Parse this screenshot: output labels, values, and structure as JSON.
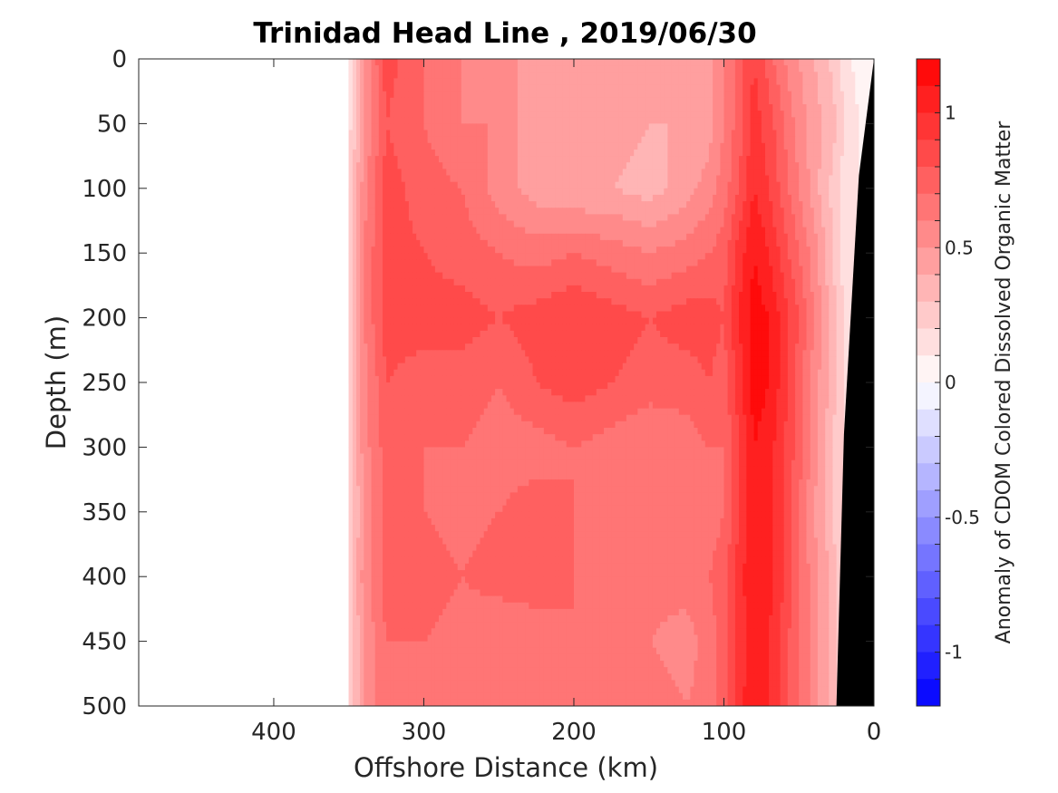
{
  "chart_data": {
    "type": "heatmap",
    "title": "Trinidad Head Line , 2019/06/30",
    "xlabel": "Offshore Distance (km)",
    "ylabel": "Depth (m)",
    "colorbar_label": "Anomaly of CDOM Colored Dissolved Organic Matter",
    "x_axis": {
      "lim": [
        490,
        0
      ],
      "reversed": true,
      "ticks": [
        400,
        300,
        200,
        100,
        0
      ],
      "tick_labels": [
        "400",
        "300",
        "200",
        "100",
        "0"
      ]
    },
    "y_axis": {
      "lim": [
        0,
        500
      ],
      "reversed": true,
      "ticks": [
        0,
        50,
        100,
        150,
        200,
        250,
        300,
        350,
        400,
        450,
        500
      ],
      "tick_labels": [
        "0",
        "50",
        "100",
        "150",
        "200",
        "250",
        "300",
        "350",
        "400",
        "450",
        "500"
      ]
    },
    "colorbar": {
      "lim": [
        -1.2,
        1.2
      ],
      "levels": 24,
      "ticks": [
        1,
        0.5,
        0,
        -0.5,
        -1
      ],
      "tick_labels": [
        "1",
        "0.5",
        "0",
        "-0.5",
        "-1"
      ],
      "colors": {
        "negative": "#0000ff",
        "zero": "#ffffff",
        "positive": "#ff0000"
      }
    },
    "data_extent": {
      "x_min": 0,
      "x_max": 350
    },
    "x": [
      350,
      340,
      325,
      300,
      275,
      250,
      225,
      200,
      175,
      150,
      125,
      110,
      100,
      90,
      80,
      70,
      60,
      50,
      40,
      30,
      25,
      20,
      10,
      5,
      0
    ],
    "y": [
      0,
      50,
      100,
      150,
      200,
      250,
      300,
      350,
      400,
      450,
      500
    ],
    "z": [
      [
        0.15,
        0.5,
        0.85,
        0.7,
        0.6,
        0.55,
        0.45,
        0.45,
        0.5,
        0.4,
        0.4,
        0.45,
        0.6,
        0.75,
        0.9,
        0.75,
        0.6,
        0.5,
        0.4,
        0.3,
        0.25,
        0.15,
        0.05,
        0.05,
        0
      ],
      [
        0.15,
        0.5,
        0.8,
        0.7,
        0.6,
        0.6,
        0.4,
        0.4,
        0.45,
        0.4,
        0.4,
        0.45,
        0.6,
        0.75,
        0.95,
        0.85,
        0.7,
        0.55,
        0.45,
        0.35,
        0.3,
        0.2,
        0.1,
        0.05,
        0
      ],
      [
        0.2,
        0.55,
        0.85,
        0.75,
        0.7,
        0.55,
        0.45,
        0.4,
        0.4,
        0.35,
        0.45,
        0.55,
        0.65,
        0.8,
        1.0,
        0.9,
        0.75,
        0.6,
        0.45,
        0.3,
        0.25,
        0.15,
        0.1,
        0.05,
        0
      ],
      [
        0.25,
        0.6,
        0.85,
        0.8,
        0.75,
        0.7,
        0.65,
        0.7,
        0.65,
        0.6,
        0.65,
        0.7,
        0.75,
        0.95,
        1.1,
        1.0,
        0.85,
        0.7,
        0.55,
        0.35,
        0.25,
        0.15,
        0.1,
        0.05,
        0
      ],
      [
        0.25,
        0.6,
        0.85,
        0.85,
        0.85,
        0.8,
        0.85,
        0.9,
        0.85,
        0.8,
        0.85,
        0.85,
        0.8,
        1.0,
        1.15,
        1.1,
        0.95,
        0.8,
        0.6,
        0.4,
        0.3,
        0.2,
        0.1,
        0.05,
        0
      ],
      [
        0.2,
        0.55,
        0.8,
        0.75,
        0.75,
        0.7,
        0.8,
        0.85,
        0.8,
        0.75,
        0.75,
        0.8,
        0.75,
        0.95,
        1.15,
        1.1,
        0.95,
        0.75,
        0.55,
        0.4,
        0.3,
        0.2,
        0.1,
        0.05,
        0
      ],
      [
        0.2,
        0.55,
        0.75,
        0.7,
        0.7,
        0.65,
        0.65,
        0.7,
        0.65,
        0.6,
        0.65,
        0.7,
        0.7,
        0.9,
        1.1,
        1.05,
        0.9,
        0.75,
        0.55,
        0.35,
        0.25,
        0.2,
        0.1,
        0.05,
        0
      ],
      [
        0.2,
        0.5,
        0.75,
        0.7,
        0.65,
        0.7,
        0.75,
        0.7,
        0.65,
        0.6,
        0.6,
        0.65,
        0.7,
        0.9,
        1.1,
        1.05,
        0.9,
        0.7,
        0.5,
        0.35,
        0.25,
        0.2,
        0.1,
        0.05,
        0
      ],
      [
        0.2,
        0.55,
        0.75,
        0.75,
        0.7,
        0.75,
        0.75,
        0.7,
        0.7,
        0.65,
        0.65,
        0.7,
        0.75,
        0.95,
        1.1,
        1.05,
        0.9,
        0.7,
        0.55,
        0.4,
        0.3,
        0.2,
        0.1,
        0.05,
        0
      ],
      [
        0.2,
        0.5,
        0.7,
        0.7,
        0.65,
        0.6,
        0.65,
        0.7,
        0.65,
        0.6,
        0.55,
        0.65,
        0.75,
        0.95,
        1.05,
        1.0,
        0.85,
        0.7,
        0.55,
        0.4,
        0.3,
        0.2,
        0.1,
        0.05,
        0
      ],
      [
        0.2,
        0.5,
        0.7,
        0.65,
        0.6,
        0.6,
        0.6,
        0.65,
        0.7,
        0.65,
        0.6,
        0.65,
        0.75,
        0.95,
        1.1,
        1.0,
        0.85,
        0.7,
        0.55,
        0.4,
        0.3,
        0.2,
        0.1,
        0.05,
        0
      ]
    ],
    "seafloor": {
      "color": "#000000",
      "points": [
        [
          0,
          0
        ],
        [
          10,
          90
        ],
        [
          20,
          290
        ],
        [
          25,
          500
        ],
        [
          0,
          500
        ]
      ]
    },
    "grid": false,
    "legend": "none"
  }
}
